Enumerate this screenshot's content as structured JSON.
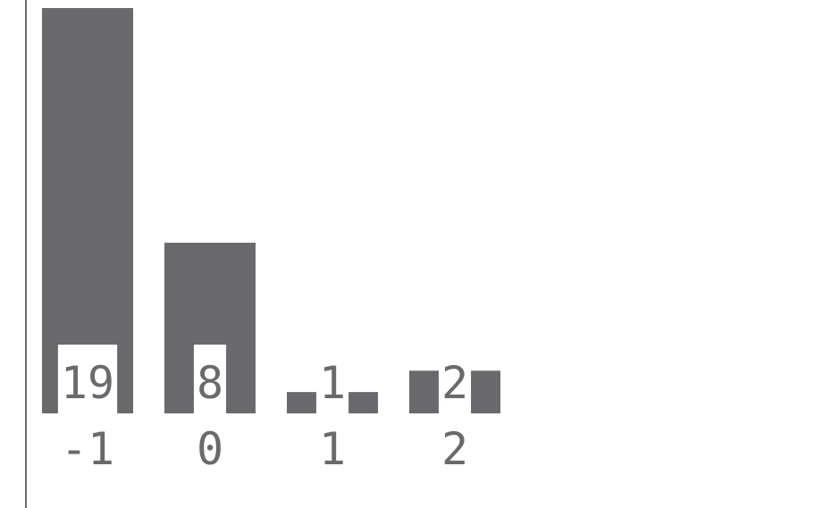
{
  "chart_data": {
    "type": "bar",
    "title": "",
    "xlabel": "",
    "ylabel": "",
    "categories": [
      "-1",
      "0",
      "1",
      "2"
    ],
    "values": [
      19,
      8,
      1,
      2
    ],
    "ylim": [
      0,
      19
    ],
    "grid": false,
    "legend": "none",
    "colors": {
      "bar": "#6a696e",
      "axis": "#6a696e",
      "text": "#6a696e",
      "background": "#ffffff"
    }
  }
}
